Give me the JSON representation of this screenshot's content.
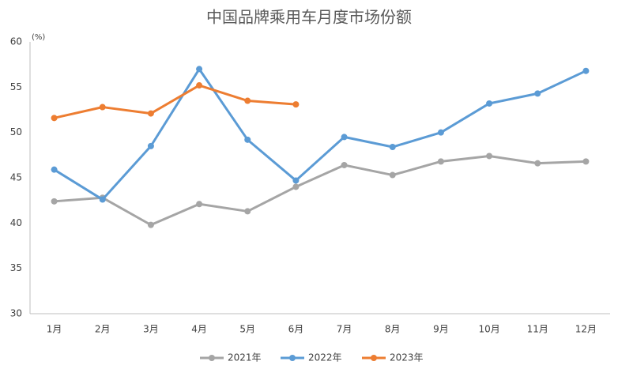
{
  "chart_data": {
    "type": "line",
    "title": "中国品牌乘用车月度市场份额",
    "y_label": "(%)",
    "categories": [
      "1月",
      "2月",
      "3月",
      "4月",
      "5月",
      "6月",
      "7月",
      "8月",
      "9月",
      "10月",
      "11月",
      "12月"
    ],
    "series": [
      {
        "name": "2021年",
        "color": "#a5a5a5",
        "values": [
          42.4,
          42.8,
          39.8,
          42.1,
          41.3,
          44.0,
          46.4,
          45.3,
          46.8,
          47.4,
          46.6,
          46.8
        ]
      },
      {
        "name": "2022年",
        "color": "#5b9bd5",
        "values": [
          45.9,
          42.6,
          48.5,
          57.0,
          49.2,
          44.7,
          49.5,
          48.4,
          50.0,
          53.2,
          54.3,
          56.8
        ]
      },
      {
        "name": "2023年",
        "color": "#ed7d31",
        "values": [
          51.6,
          52.8,
          52.1,
          55.2,
          53.5,
          53.1,
          null,
          null,
          null,
          null,
          null,
          null
        ]
      }
    ],
    "ylim": [
      30,
      60
    ],
    "yticks": [
      30,
      35,
      40,
      45,
      50,
      55,
      60
    ],
    "grid": false,
    "legend": "bottom"
  }
}
